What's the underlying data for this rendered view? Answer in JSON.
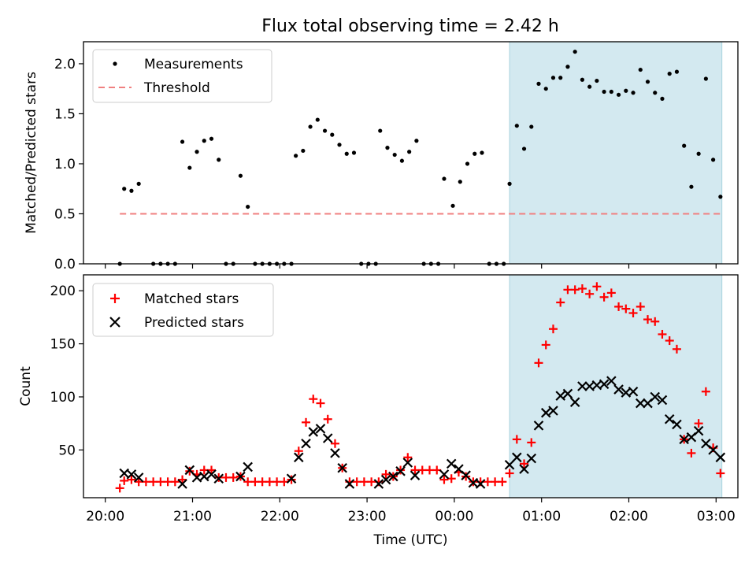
{
  "figure": {
    "title": "Flux total observing time = 2.42 h"
  },
  "chart_data": [
    {
      "type": "scatter",
      "panel": "top",
      "title": "Flux total observing time = 2.42 h",
      "xlabel": "",
      "ylabel": "Matched/Predicted stars",
      "x_unit": "hours since 20:00 UTC on time axis",
      "xlim": [
        "20:00-00:15",
        "03:00+00:15"
      ],
      "ylim": [
        0,
        2.22
      ],
      "yticks": [
        0.0,
        0.5,
        1.0,
        1.5,
        2.0
      ],
      "ytick_labels": [
        "0.0",
        "0.5",
        "1.0",
        "1.5",
        "2.0"
      ],
      "highlight_span": {
        "from": "00:38",
        "to": "03:04",
        "color": "#d3e9f0"
      },
      "legend": {
        "position": "top-left",
        "entries": [
          "Measurements",
          "Threshold"
        ]
      },
      "series": [
        {
          "name": "Measurements",
          "marker": "dot",
          "color": "#000000",
          "points": [
            [
              "20:10",
              0.0
            ],
            [
              "20:13",
              0.75
            ],
            [
              "20:18",
              0.73
            ],
            [
              "20:23",
              0.8
            ],
            [
              "20:33",
              0.0
            ],
            [
              "20:38",
              0.0
            ],
            [
              "20:43",
              0.0
            ],
            [
              "20:48",
              0.0
            ],
            [
              "20:53",
              1.22
            ],
            [
              "20:58",
              0.96
            ],
            [
              "21:03",
              1.12
            ],
            [
              "21:08",
              1.23
            ],
            [
              "21:13",
              1.25
            ],
            [
              "21:18",
              1.04
            ],
            [
              "21:23",
              0.0
            ],
            [
              "21:28",
              0.0
            ],
            [
              "21:33",
              0.88
            ],
            [
              "21:38",
              0.57
            ],
            [
              "21:43",
              0.0
            ],
            [
              "21:48",
              0.0
            ],
            [
              "21:53",
              0.0
            ],
            [
              "21:58",
              0.0
            ],
            [
              "22:03",
              0.0
            ],
            [
              "22:08",
              0.0
            ],
            [
              "22:11",
              1.08
            ],
            [
              "22:16",
              1.13
            ],
            [
              "22:21",
              1.37
            ],
            [
              "22:26",
              1.44
            ],
            [
              "22:31",
              1.33
            ],
            [
              "22:36",
              1.29
            ],
            [
              "22:41",
              1.19
            ],
            [
              "22:46",
              1.1
            ],
            [
              "22:51",
              1.11
            ],
            [
              "22:56",
              0.0
            ],
            [
              "23:01",
              0.0
            ],
            [
              "23:06",
              0.0
            ],
            [
              "23:09",
              1.33
            ],
            [
              "23:14",
              1.16
            ],
            [
              "23:19",
              1.09
            ],
            [
              "23:24",
              1.03
            ],
            [
              "23:29",
              1.12
            ],
            [
              "23:34",
              1.23
            ],
            [
              "23:39",
              0.0
            ],
            [
              "23:44",
              0.0
            ],
            [
              "23:49",
              0.0
            ],
            [
              "23:53",
              0.85
            ],
            [
              "23:59",
              0.58
            ],
            [
              "00:04",
              0.82
            ],
            [
              "00:09",
              1.0
            ],
            [
              "00:14",
              1.1
            ],
            [
              "00:19",
              1.11
            ],
            [
              "00:24",
              0.0
            ],
            [
              "00:29",
              0.0
            ],
            [
              "00:34",
              0.0
            ],
            [
              "00:38",
              0.8
            ],
            [
              "00:43",
              1.38
            ],
            [
              "00:48",
              1.15
            ],
            [
              "00:53",
              1.37
            ],
            [
              "00:58",
              1.8
            ],
            [
              "01:03",
              1.75
            ],
            [
              "01:08",
              1.86
            ],
            [
              "01:13",
              1.86
            ],
            [
              "01:18",
              1.97
            ],
            [
              "01:23",
              2.12
            ],
            [
              "01:28",
              1.84
            ],
            [
              "01:33",
              1.77
            ],
            [
              "01:38",
              1.83
            ],
            [
              "01:43",
              1.72
            ],
            [
              "01:48",
              1.72
            ],
            [
              "01:53",
              1.69
            ],
            [
              "01:58",
              1.73
            ],
            [
              "02:03",
              1.71
            ],
            [
              "02:08",
              1.94
            ],
            [
              "02:13",
              1.82
            ],
            [
              "02:18",
              1.71
            ],
            [
              "02:23",
              1.65
            ],
            [
              "02:28",
              1.9
            ],
            [
              "02:33",
              1.92
            ],
            [
              "02:38",
              1.18
            ],
            [
              "02:43",
              0.77
            ],
            [
              "02:48",
              1.1
            ],
            [
              "02:53",
              1.85
            ],
            [
              "02:58",
              1.04
            ],
            [
              "03:03",
              0.67
            ]
          ]
        },
        {
          "name": "Threshold",
          "style": "dashed-line",
          "color": "#f08080",
          "points": [
            [
              "20:10",
              0.5
            ],
            [
              "03:03",
              0.5
            ]
          ]
        }
      ]
    },
    {
      "type": "scatter",
      "panel": "bottom",
      "xlabel": "Time (UTC)",
      "ylabel": "Count",
      "xticks": [
        "20:00",
        "21:00",
        "22:00",
        "23:00",
        "00:00",
        "01:00",
        "02:00",
        "03:00"
      ],
      "ylim": [
        5,
        215
      ],
      "yticks": [
        50,
        100,
        150,
        200
      ],
      "ytick_labels": [
        "50",
        "100",
        "150",
        "200"
      ],
      "legend": {
        "position": "top-left",
        "entries": [
          "Matched stars",
          "Predicted stars"
        ]
      },
      "series": [
        {
          "name": "Matched stars",
          "marker": "plus",
          "color": "#ff0000",
          "points": [
            [
              "20:10",
              14
            ],
            [
              "20:13",
              21
            ],
            [
              "20:18",
              22
            ],
            [
              "20:23",
              20
            ],
            [
              "20:28",
              20
            ],
            [
              "20:33",
              20
            ],
            [
              "20:38",
              20
            ],
            [
              "20:43",
              20
            ],
            [
              "20:48",
              20
            ],
            [
              "20:53",
              22
            ],
            [
              "20:58",
              30
            ],
            [
              "21:03",
              27
            ],
            [
              "21:08",
              31
            ],
            [
              "21:13",
              31
            ],
            [
              "21:18",
              24
            ],
            [
              "21:23",
              24
            ],
            [
              "21:28",
              24
            ],
            [
              "21:33",
              25
            ],
            [
              "21:38",
              20
            ],
            [
              "21:43",
              20
            ],
            [
              "21:48",
              20
            ],
            [
              "21:53",
              20
            ],
            [
              "21:58",
              20
            ],
            [
              "22:03",
              20
            ],
            [
              "22:08",
              22
            ],
            [
              "22:13",
              49
            ],
            [
              "22:18",
              76
            ],
            [
              "22:23",
              98
            ],
            [
              "22:28",
              94
            ],
            [
              "22:33",
              79
            ],
            [
              "22:38",
              56
            ],
            [
              "22:43",
              33
            ],
            [
              "22:48",
              20
            ],
            [
              "22:53",
              20
            ],
            [
              "22:58",
              20
            ],
            [
              "23:03",
              20
            ],
            [
              "23:08",
              20
            ],
            [
              "23:13",
              27
            ],
            [
              "23:18",
              25
            ],
            [
              "23:23",
              31
            ],
            [
              "23:28",
              43
            ],
            [
              "23:33",
              31
            ],
            [
              "23:38",
              31
            ],
            [
              "23:43",
              31
            ],
            [
              "23:48",
              31
            ],
            [
              "23:53",
              22
            ],
            [
              "23:58",
              23
            ],
            [
              "00:03",
              29
            ],
            [
              "00:08",
              25
            ],
            [
              "00:13",
              20
            ],
            [
              "00:18",
              20
            ],
            [
              "00:23",
              20
            ],
            [
              "00:28",
              20
            ],
            [
              "00:33",
              20
            ],
            [
              "00:38",
              28
            ],
            [
              "00:43",
              60
            ],
            [
              "00:48",
              37
            ],
            [
              "00:53",
              57
            ],
            [
              "00:58",
              132
            ],
            [
              "01:03",
              149
            ],
            [
              "01:08",
              164
            ],
            [
              "01:13",
              189
            ],
            [
              "01:18",
              201
            ],
            [
              "01:23",
              201
            ],
            [
              "01:28",
              202
            ],
            [
              "01:33",
              197
            ],
            [
              "01:38",
              204
            ],
            [
              "01:43",
              194
            ],
            [
              "01:48",
              198
            ],
            [
              "01:53",
              185
            ],
            [
              "01:58",
              183
            ],
            [
              "02:03",
              179
            ],
            [
              "02:08",
              185
            ],
            [
              "02:13",
              173
            ],
            [
              "02:18",
              171
            ],
            [
              "02:23",
              159
            ],
            [
              "02:28",
              153
            ],
            [
              "02:33",
              145
            ],
            [
              "02:38",
              60
            ],
            [
              "02:43",
              47
            ],
            [
              "02:48",
              75
            ],
            [
              "02:53",
              105
            ],
            [
              "02:58",
              52
            ],
            [
              "03:03",
              28
            ]
          ]
        },
        {
          "name": "Predicted stars",
          "marker": "x",
          "color": "#000000",
          "points": [
            [
              "20:13",
              28
            ],
            [
              "20:18",
              27
            ],
            [
              "20:23",
              24
            ],
            [
              "20:53",
              18
            ],
            [
              "20:58",
              31
            ],
            [
              "21:03",
              24
            ],
            [
              "21:08",
              25
            ],
            [
              "21:13",
              27
            ],
            [
              "21:18",
              23
            ],
            [
              "21:33",
              25
            ],
            [
              "21:38",
              34
            ],
            [
              "22:08",
              23
            ],
            [
              "22:13",
              43
            ],
            [
              "22:18",
              56
            ],
            [
              "22:23",
              67
            ],
            [
              "22:28",
              70
            ],
            [
              "22:33",
              61
            ],
            [
              "22:38",
              47
            ],
            [
              "22:43",
              33
            ],
            [
              "22:48",
              18
            ],
            [
              "23:08",
              18
            ],
            [
              "23:13",
              22
            ],
            [
              "23:18",
              25
            ],
            [
              "23:23",
              30
            ],
            [
              "23:28",
              38
            ],
            [
              "23:33",
              26
            ],
            [
              "23:53",
              27
            ],
            [
              "23:58",
              37
            ],
            [
              "00:03",
              32
            ],
            [
              "00:08",
              26
            ],
            [
              "00:13",
              19
            ],
            [
              "00:18",
              18
            ],
            [
              "00:38",
              36
            ],
            [
              "00:43",
              43
            ],
            [
              "00:48",
              32
            ],
            [
              "00:53",
              42
            ],
            [
              "00:58",
              73
            ],
            [
              "01:03",
              85
            ],
            [
              "01:08",
              87
            ],
            [
              "01:13",
              101
            ],
            [
              "01:18",
              103
            ],
            [
              "01:23",
              95
            ],
            [
              "01:28",
              110
            ],
            [
              "01:33",
              110
            ],
            [
              "01:38",
              111
            ],
            [
              "01:43",
              112
            ],
            [
              "01:48",
              115
            ],
            [
              "01:53",
              107
            ],
            [
              "01:58",
              104
            ],
            [
              "02:03",
              105
            ],
            [
              "02:08",
              94
            ],
            [
              "02:13",
              94
            ],
            [
              "02:18",
              100
            ],
            [
              "02:23",
              97
            ],
            [
              "02:28",
              79
            ],
            [
              "02:33",
              74
            ],
            [
              "02:38",
              60
            ],
            [
              "02:43",
              62
            ],
            [
              "02:48",
              68
            ],
            [
              "02:53",
              56
            ],
            [
              "02:58",
              50
            ],
            [
              "03:03",
              43
            ]
          ]
        }
      ]
    }
  ]
}
